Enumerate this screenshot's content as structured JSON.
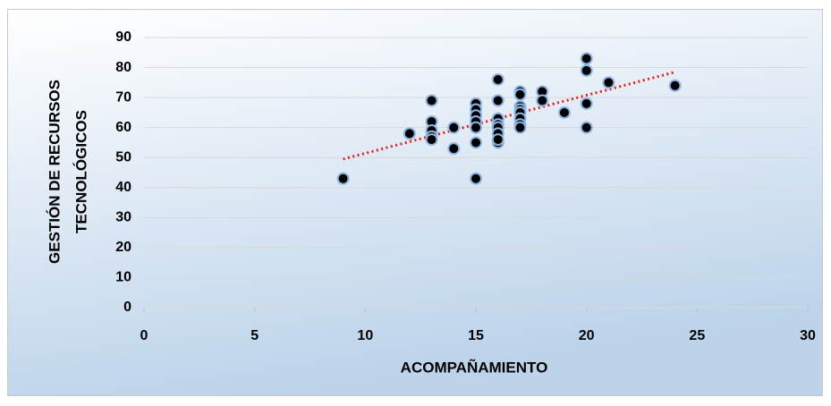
{
  "chart_data": {
    "type": "scatter",
    "x_label": "ACOMPAÑAMIENTO",
    "y_label": [
      "GESTIÓN DE RECURSOS",
      "TECNOLÓGICOS"
    ],
    "series": [
      {
        "color": "#000000",
        "edge_color": "#8eb4e3",
        "x": [
          9,
          12,
          13,
          13,
          13,
          13,
          13,
          14,
          14,
          15,
          15,
          15,
          15,
          15,
          15,
          15,
          16,
          16,
          16,
          16,
          16,
          16,
          16,
          16,
          17,
          17,
          17,
          17,
          17,
          17,
          17,
          17,
          18,
          18,
          19,
          20,
          20,
          20,
          20,
          21,
          24
        ],
        "y": [
          43,
          58,
          69,
          62,
          59,
          57,
          56,
          60,
          53,
          68,
          66,
          64,
          62,
          60,
          55,
          43,
          76,
          69,
          63,
          61,
          60,
          58,
          55,
          56,
          72,
          71,
          67,
          66,
          65,
          63,
          61,
          60,
          72,
          69,
          65,
          83,
          79,
          68,
          60,
          75,
          74
        ]
      }
    ],
    "trendline": {
      "x": [
        9,
        24
      ],
      "y": [
        49.5,
        78.5
      ],
      "color": "#e02020"
    },
    "xlim": [
      0,
      30
    ],
    "xticks": [
      0,
      5,
      10,
      15,
      20,
      25,
      30
    ],
    "ylim": [
      0,
      90
    ],
    "yticks": [
      0,
      10,
      20,
      30,
      40,
      50,
      60,
      70,
      80,
      90
    ],
    "grid": true
  }
}
